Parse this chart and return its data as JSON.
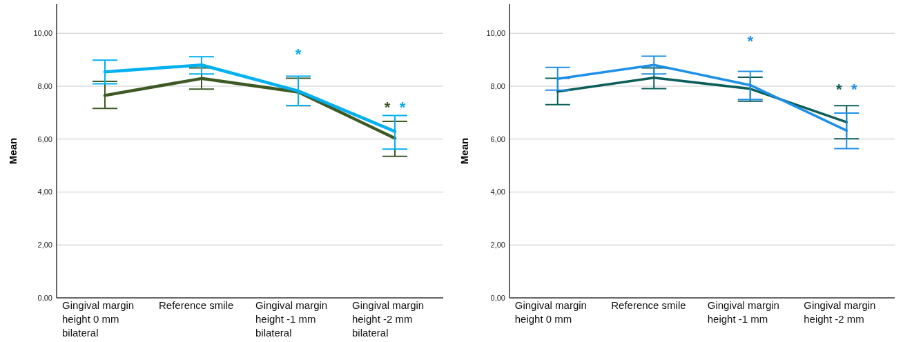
{
  "chart_data": [
    {
      "type": "line",
      "ylabel": "Mean",
      "categories": [
        "Gingival margin height 0 mm bilateral",
        "Reference smile",
        "Gingival margin height -1 mm bilateral",
        "Gingival margin height -2 mm bilateral"
      ],
      "ylim": [
        0,
        11.1
      ],
      "yticks": [
        {
          "value": 0,
          "label": "0,00"
        },
        {
          "value": 2,
          "label": "2,00"
        },
        {
          "value": 4,
          "label": "4,00"
        },
        {
          "value": 6,
          "label": "6,00"
        },
        {
          "value": 8,
          "label": "8,00"
        },
        {
          "value": 10,
          "label": "10,00"
        }
      ],
      "grid": "y",
      "series": [
        {
          "color": "#3d5a25",
          "values": [
            7.65,
            8.29,
            7.78,
            6.03
          ],
          "errors": [
            [
              7.16,
              8.18
            ],
            [
              7.89,
              8.69
            ],
            [
              7.26,
              8.3
            ],
            [
              5.35,
              6.67
            ]
          ]
        },
        {
          "color": "#00b0f0",
          "values": [
            8.54,
            8.8,
            7.82,
            6.29
          ],
          "errors": [
            [
              8.09,
              8.98
            ],
            [
              8.46,
              9.11
            ],
            [
              7.27,
              8.38
            ],
            [
              5.62,
              6.89
            ]
          ]
        }
      ],
      "annotations": [
        "*",
        "*",
        "*"
      ]
    },
    {
      "type": "line",
      "ylabel": "Mean",
      "categories": [
        "Gingival margin height 0 mm",
        "Reference smile",
        "Gingival margin height -1 mm",
        "Gingival margin height -2 mm"
      ],
      "ylim": [
        0,
        11.1
      ],
      "yticks": [
        {
          "value": 0,
          "label": "0,00"
        },
        {
          "value": 2,
          "label": "2,00"
        },
        {
          "value": 4,
          "label": "4,00"
        },
        {
          "value": 6,
          "label": "6,00"
        },
        {
          "value": 8,
          "label": "8,00"
        },
        {
          "value": 10,
          "label": "10,00"
        }
      ],
      "grid": "y",
      "series": [
        {
          "color": "#0b5e5a",
          "values": [
            7.8,
            8.32,
            7.9,
            6.64
          ],
          "errors": [
            [
              7.3,
              8.3
            ],
            [
              7.91,
              8.69
            ],
            [
              7.43,
              8.34
            ],
            [
              6.01,
              7.26
            ]
          ]
        },
        {
          "color": "#1e90e8",
          "values": [
            8.28,
            8.8,
            8.04,
            6.32
          ],
          "errors": [
            [
              7.85,
              8.71
            ],
            [
              8.46,
              9.13
            ],
            [
              7.5,
              8.56
            ],
            [
              5.64,
              6.98
            ]
          ]
        }
      ],
      "annotations": [
        "*",
        "*",
        "*"
      ]
    }
  ]
}
